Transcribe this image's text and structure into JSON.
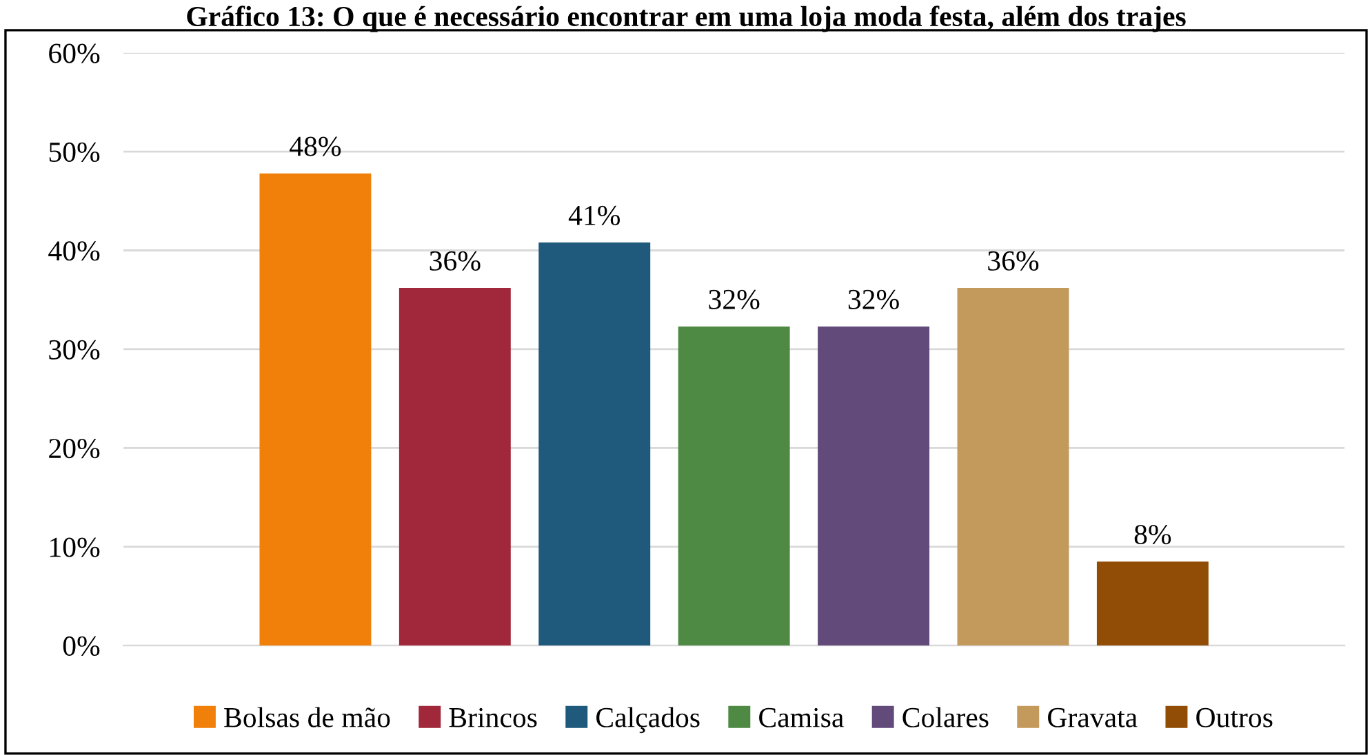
{
  "chart_data": {
    "type": "bar",
    "title": "Gráfico 13: O que é necessário encontrar em uma loja moda festa, além dos trajes",
    "categories": [
      null
    ],
    "series": [
      {
        "name": "Bolsas de mão",
        "color": "#f0800a",
        "values": [
          47.8
        ],
        "value_labels": [
          "48%"
        ]
      },
      {
        "name": "Brincos",
        "color": "#a0283a",
        "values": [
          36.2
        ],
        "value_labels": [
          "36%"
        ]
      },
      {
        "name": "Calçados",
        "color": "#1f5a7c",
        "values": [
          40.8
        ],
        "value_labels": [
          "41%"
        ]
      },
      {
        "name": "Camisa",
        "color": "#4e8a44",
        "values": [
          32.3
        ],
        "value_labels": [
          "32%"
        ]
      },
      {
        "name": "Colares",
        "color": "#624a7b",
        "values": [
          32.3
        ],
        "value_labels": [
          "32%"
        ]
      },
      {
        "name": "Gravata",
        "color": "#c39a5c",
        "values": [
          36.2
        ],
        "value_labels": [
          "36%"
        ]
      },
      {
        "name": "Outros",
        "color": "#914d06",
        "values": [
          8.5
        ],
        "value_labels": [
          "8%"
        ]
      }
    ],
    "ylim": [
      0,
      60
    ],
    "yticks": [
      {
        "value": 0,
        "label": "0%"
      },
      {
        "value": 10,
        "label": "10%"
      },
      {
        "value": 20,
        "label": "20%"
      },
      {
        "value": 30,
        "label": "30%"
      },
      {
        "value": 40,
        "label": "40%"
      },
      {
        "value": 50,
        "label": "50%"
      },
      {
        "value": 60,
        "label": "60%"
      }
    ],
    "grid": "y",
    "legend": "bottom"
  }
}
